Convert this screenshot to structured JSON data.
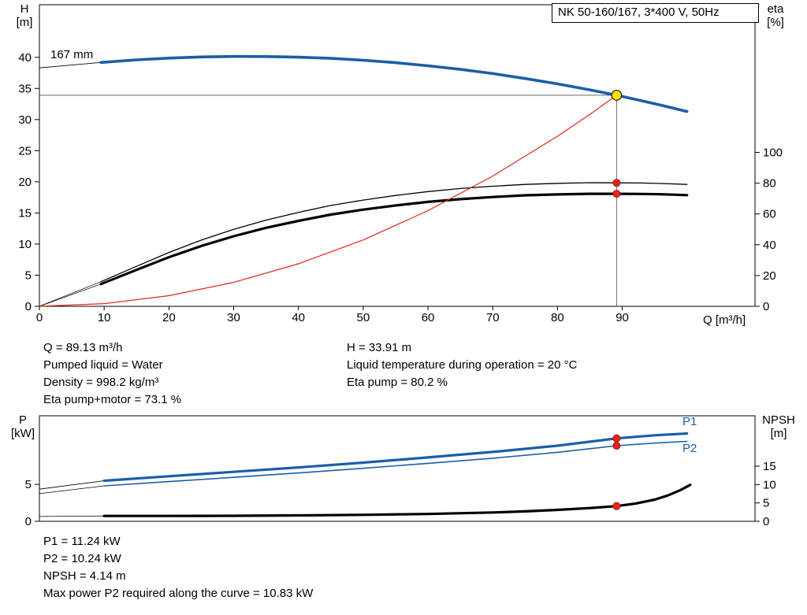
{
  "title_box": "NK 50-160/167, 3*400 V, 50Hz",
  "colors": {
    "blue": "#1b5ea8",
    "black": "#000000",
    "red": "#e8231a",
    "yellow": "#ffe500",
    "crosshair": "#555555"
  },
  "chart_data": [
    {
      "id": "hq-eta-chart",
      "type": "line",
      "x_axis_label": "Q [m³/h]",
      "left_axis_title": [
        "H",
        "[m]"
      ],
      "right_axis_title": [
        "eta",
        "[%]"
      ],
      "curve_label": "167 mm",
      "xlim": [
        0,
        110.5
      ],
      "ylim_left": [
        0,
        48.45
      ],
      "ylim_right": [
        0,
        195.9
      ],
      "x_ticks": [
        0,
        10,
        20,
        30,
        40,
        50,
        60,
        70,
        80,
        90
      ],
      "left_ticks": [
        0,
        5,
        10,
        15,
        20,
        25,
        30,
        35,
        40
      ],
      "right_ticks": [
        0,
        20,
        40,
        60,
        80,
        100
      ],
      "grid": false,
      "legend": "none",
      "series": [
        {
          "name": "pump-curve-connector",
          "axis": "left",
          "color": "#000000",
          "width": 0.9,
          "points": [
            [
              0,
              38.3
            ],
            [
              9.5,
              39.18
            ]
          ]
        },
        {
          "name": "pump-curve-167mm",
          "axis": "left",
          "color": "#1b5ea8",
          "width": 3.6,
          "points": [
            [
              9.5,
              39.18
            ],
            [
              15,
              39.6
            ],
            [
              20,
              39.87
            ],
            [
              25,
              40.06
            ],
            [
              30,
              40.14
            ],
            [
              35,
              40.13
            ],
            [
              40,
              40.03
            ],
            [
              45,
              39.83
            ],
            [
              50,
              39.53
            ],
            [
              55,
              39.14
            ],
            [
              60,
              38.65
            ],
            [
              65,
              38.07
            ],
            [
              70,
              37.39
            ],
            [
              75,
              36.6
            ],
            [
              80,
              35.74
            ],
            [
              85,
              34.77
            ],
            [
              89.13,
              33.91
            ],
            [
              92,
              33.26
            ],
            [
              96,
              32.31
            ],
            [
              100,
              31.3
            ]
          ]
        },
        {
          "name": "eta-pump-connector",
          "axis": "right",
          "color": "#000000",
          "width": 0.7,
          "points": [
            [
              0,
              0
            ],
            [
              9.5,
              16
            ]
          ]
        },
        {
          "name": "eta-pump-curve",
          "axis": "right",
          "color": "#000000",
          "width": 1.3,
          "points": [
            [
              9.5,
              16
            ],
            [
              15,
              26
            ],
            [
              20,
              35
            ],
            [
              25,
              43
            ],
            [
              30,
              50
            ],
            [
              35,
              56
            ],
            [
              40,
              61
            ],
            [
              45,
              65.5
            ],
            [
              50,
              69
            ],
            [
              55,
              72
            ],
            [
              60,
              74.5
            ],
            [
              65,
              76.5
            ],
            [
              70,
              78
            ],
            [
              75,
              79.2
            ],
            [
              80,
              79.9
            ],
            [
              85,
              80.3
            ],
            [
              89.13,
              80.2
            ],
            [
              93,
              80.1
            ],
            [
              96,
              79.8
            ],
            [
              100,
              79.2
            ]
          ]
        },
        {
          "name": "eta-pump-motor-connector",
          "axis": "right",
          "color": "#000000",
          "width": 0.7,
          "points": [
            [
              0,
              0
            ],
            [
              9.5,
              14.5
            ]
          ]
        },
        {
          "name": "eta-pump-motor-curve",
          "axis": "right",
          "color": "#000000",
          "width": 3.2,
          "points": [
            [
              9.5,
              14.5
            ],
            [
              15,
              23.7
            ],
            [
              20,
              31.9
            ],
            [
              25,
              39.2
            ],
            [
              30,
              45.5
            ],
            [
              35,
              51
            ],
            [
              40,
              55.5
            ],
            [
              45,
              59.6
            ],
            [
              50,
              62.8
            ],
            [
              55,
              65.5
            ],
            [
              60,
              67.8
            ],
            [
              65,
              69.6
            ],
            [
              70,
              71
            ],
            [
              75,
              72.1
            ],
            [
              80,
              72.7
            ],
            [
              85,
              73.1
            ],
            [
              89.13,
              73.1
            ],
            [
              93,
              73
            ],
            [
              96,
              72.8
            ],
            [
              100,
              72.2
            ]
          ]
        },
        {
          "name": "system-curve",
          "axis": "left",
          "color": "#e8231a",
          "width": 1.2,
          "points": [
            [
              0,
              0
            ],
            [
              10,
              0.43
            ],
            [
              20,
              1.71
            ],
            [
              30,
              3.84
            ],
            [
              40,
              6.83
            ],
            [
              50,
              10.67
            ],
            [
              60,
              15.37
            ],
            [
              70,
              20.92
            ],
            [
              80,
              27.32
            ],
            [
              85,
              30.84
            ],
            [
              89.13,
              33.91
            ]
          ]
        }
      ],
      "markers": [
        {
          "name": "duty-point",
          "style": "yellow",
          "axis": "left",
          "x": 89.13,
          "y": 33.91
        },
        {
          "name": "eta-pump-point",
          "style": "red",
          "axis": "right",
          "x": 89.13,
          "y": 80.2
        },
        {
          "name": "eta-pump-motor-point",
          "style": "red",
          "axis": "right",
          "x": 89.13,
          "y": 73.1
        }
      ],
      "crosshair": {
        "x": 89.13,
        "y": 33.91
      }
    },
    {
      "id": "power-npsh-chart",
      "type": "line",
      "left_axis_title": [
        "P",
        "[kW]"
      ],
      "right_axis_title": [
        "NPSH",
        "[m]"
      ],
      "p1_label": "P1",
      "p2_label": "P2",
      "xlim": [
        0,
        110.5
      ],
      "ylim_left": [
        0,
        14.3
      ],
      "ylim_right": [
        0,
        28.7
      ],
      "x_ticks": [],
      "left_ticks": [
        0,
        5
      ],
      "right_ticks": [
        0,
        5,
        10,
        15
      ],
      "grid": false,
      "legend": "inline",
      "series": [
        {
          "name": "p1-connector",
          "axis": "left",
          "color": "#000000",
          "width": 0.8,
          "points": [
            [
              0,
              4.35
            ],
            [
              10,
              5.5
            ]
          ]
        },
        {
          "name": "p1-curve",
          "axis": "left",
          "color": "#1b5ea8",
          "width": 3.2,
          "points": [
            [
              10,
              5.5
            ],
            [
              20,
              6.1
            ],
            [
              30,
              6.7
            ],
            [
              40,
              7.3
            ],
            [
              50,
              7.95
            ],
            [
              60,
              8.65
            ],
            [
              70,
              9.4
            ],
            [
              80,
              10.25
            ],
            [
              89.13,
              11.24
            ],
            [
              95,
              11.65
            ],
            [
              100,
              11.9
            ]
          ]
        },
        {
          "name": "p2-connector",
          "axis": "left",
          "color": "#000000",
          "width": 0.8,
          "points": [
            [
              0,
              3.75
            ],
            [
              10,
              4.8
            ]
          ]
        },
        {
          "name": "p2-curve",
          "axis": "left",
          "color": "#1b5ea8",
          "width": 1.6,
          "points": [
            [
              10,
              4.8
            ],
            [
              20,
              5.38
            ],
            [
              30,
              5.95
            ],
            [
              40,
              6.55
            ],
            [
              50,
              7.18
            ],
            [
              60,
              7.85
            ],
            [
              70,
              8.55
            ],
            [
              80,
              9.35
            ],
            [
              89.13,
              10.24
            ],
            [
              95,
              10.6
            ],
            [
              100,
              10.83
            ]
          ]
        },
        {
          "name": "npsh-connector",
          "axis": "right",
          "color": "#000000",
          "width": 0.8,
          "points": [
            [
              0,
              1.3
            ],
            [
              10,
              1.45
            ]
          ]
        },
        {
          "name": "npsh-curve",
          "axis": "right",
          "color": "#000000",
          "width": 3.2,
          "points": [
            [
              10,
              1.45
            ],
            [
              20,
              1.45
            ],
            [
              30,
              1.5
            ],
            [
              40,
              1.6
            ],
            [
              50,
              1.75
            ],
            [
              60,
              2.0
            ],
            [
              70,
              2.4
            ],
            [
              75,
              2.7
            ],
            [
              80,
              3.1
            ],
            [
              85,
              3.6
            ],
            [
              89.13,
              4.14
            ],
            [
              92,
              4.8
            ],
            [
              95,
              5.9
            ],
            [
              97,
              7.0
            ],
            [
              99,
              8.5
            ],
            [
              100.5,
              9.9
            ]
          ]
        }
      ],
      "markers": [
        {
          "name": "p1-point",
          "style": "red",
          "axis": "left",
          "x": 89.13,
          "y": 11.24
        },
        {
          "name": "p2-point",
          "style": "red",
          "axis": "left",
          "x": 89.13,
          "y": 10.24
        },
        {
          "name": "npsh-point",
          "style": "red",
          "axis": "right",
          "x": 89.13,
          "y": 4.14
        }
      ]
    }
  ],
  "info_top": {
    "left": [
      "Q = 89.13 m³/h",
      "Pumped liquid = Water",
      "Density = 998.2 kg/m³",
      "Eta pump+motor = 73.1 %"
    ],
    "right": [
      "H = 33.91 m",
      "Liquid temperature during operation = 20 °C",
      "Eta pump = 80.2 %"
    ]
  },
  "info_bottom": [
    "P1 = 11.24 kW",
    "P2 = 10.24 kW",
    "NPSH = 4.14 m",
    "Max power P2 required along the curve = 10.83 kW"
  ]
}
